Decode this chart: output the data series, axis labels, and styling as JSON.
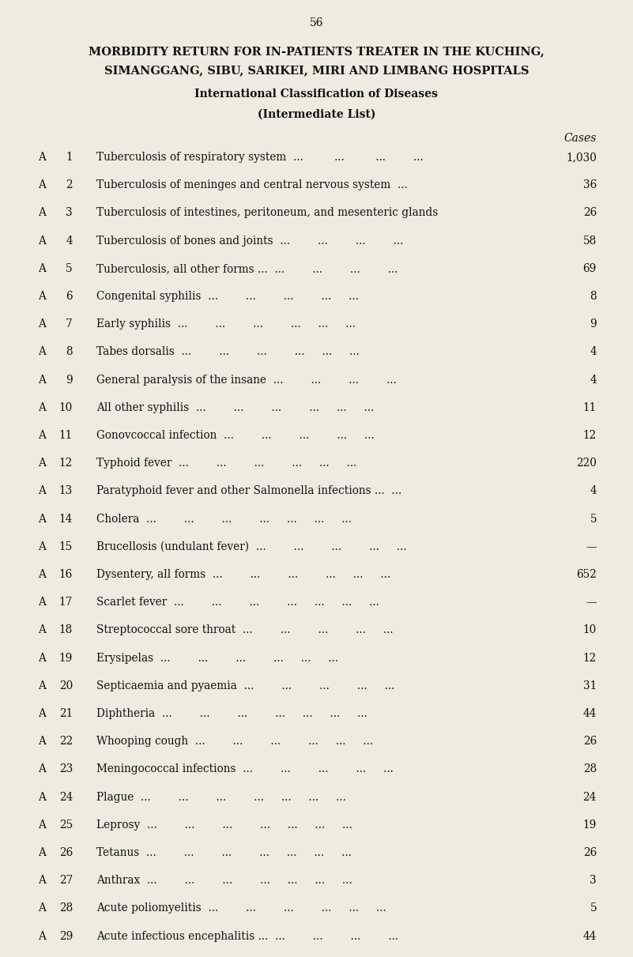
{
  "page_number": "56",
  "title_line1": "MORBIDITY RETURN FOR IN-PATIENTS TREATER IN THE KUCHING,",
  "title_line2": "SIMANGGANG, SIBU, SARIKEI, MIRI AND LIMBANG HOSPITALS",
  "subtitle1": "International Classification of Diseases",
  "subtitle2": "(Intermediate List)",
  "col_header": "Cases",
  "background_color": "#f0ebe0",
  "text_color": "#111111",
  "rows": [
    {
      "letter": "A",
      "num": "1",
      "description": "Tuberculosis of respiratory system",
      "dots": "...         ...         ...        ...",
      "value": "1,030"
    },
    {
      "letter": "A",
      "num": "2",
      "description": "Tuberculosis of meninges and central nervous system",
      "dots": "...",
      "value": "36"
    },
    {
      "letter": "A",
      "num": "3",
      "description": "Tuberculosis of intestines, peritoneum, and mesenteric glands",
      "dots": "",
      "value": "26"
    },
    {
      "letter": "A",
      "num": "4",
      "description": "Tuberculosis of bones and joints",
      "dots": "...        ...        ...        ...",
      "value": "58"
    },
    {
      "letter": "A",
      "num": "5",
      "description": "Tuberculosis, all other forms ...",
      "dots": "...        ...        ...        ...",
      "value": "69"
    },
    {
      "letter": "A",
      "num": "6",
      "description": "Congenital syphilis",
      "dots": "...        ...        ...        ...     ...",
      "value": "8"
    },
    {
      "letter": "A",
      "num": "7",
      "description": "Early syphilis",
      "dots": "...        ...        ...        ...     ...     ...",
      "value": "9"
    },
    {
      "letter": "A",
      "num": "8",
      "description": "Tabes dorsalis",
      "dots": "...        ...        ...        ...     ...     ...",
      "value": "4"
    },
    {
      "letter": "A",
      "num": "9",
      "description": "General paralysis of the insane",
      "dots": "...        ...        ...        ...",
      "value": "4"
    },
    {
      "letter": "A",
      "num": "10",
      "description": "All other syphilis",
      "dots": "...        ...        ...        ...     ...     ...",
      "value": "11"
    },
    {
      "letter": "A",
      "num": "11",
      "description": "Gonovcoccal infection",
      "dots": "...        ...        ...        ...     ...",
      "value": "12"
    },
    {
      "letter": "A",
      "num": "12",
      "description": "Typhoid fever",
      "dots": "...        ...        ...        ...     ...     ...",
      "value": "220"
    },
    {
      "letter": "A",
      "num": "13",
      "description": "Paratyphoid fever and other Salmonella infections ...",
      "dots": "...",
      "value": "4"
    },
    {
      "letter": "A",
      "num": "14",
      "description": "Cholera",
      "dots": "...        ...        ...        ...     ...     ...     ...",
      "value": "5"
    },
    {
      "letter": "A",
      "num": "15",
      "description": "Brucellosis (undulant fever)",
      "dots": "...        ...        ...        ...     ...",
      "value": "—"
    },
    {
      "letter": "A",
      "num": "16",
      "description": "Dysentery, all forms",
      "dots": "...        ...        ...        ...     ...     ...",
      "value": "652"
    },
    {
      "letter": "A",
      "num": "17",
      "description": "Scarlet fever",
      "dots": "...        ...        ...        ...     ...     ...     ...",
      "value": "—"
    },
    {
      "letter": "A",
      "num": "18",
      "description": "Streptococcal sore throat",
      "dots": "...        ...        ...        ...     ...",
      "value": "10"
    },
    {
      "letter": "A",
      "num": "19",
      "description": "Erysipelas",
      "dots": "...        ...        ...        ...     ...     ...",
      "value": "12"
    },
    {
      "letter": "A",
      "num": "20",
      "description": "Septicaemia and pyaemia",
      "dots": "...        ...        ...        ...     ...",
      "value": "31"
    },
    {
      "letter": "A",
      "num": "21",
      "description": "Diphtheria",
      "dots": "...        ...        ...        ...     ...     ...     ...",
      "value": "44"
    },
    {
      "letter": "A",
      "num": "22",
      "description": "Whooping cough",
      "dots": "...        ...        ...        ...     ...     ...",
      "value": "26"
    },
    {
      "letter": "A",
      "num": "23",
      "description": "Meningococcal infections",
      "dots": "...        ...        ...        ...     ...",
      "value": "28"
    },
    {
      "letter": "A",
      "num": "24",
      "description": "Plague",
      "dots": "...        ...        ...        ...     ...     ...     ...",
      "value": "24"
    },
    {
      "letter": "A",
      "num": "25",
      "description": "Leprosy",
      "dots": "...        ...        ...        ...     ...     ...     ...",
      "value": "19"
    },
    {
      "letter": "A",
      "num": "26",
      "description": "Tetanus",
      "dots": "...        ...        ...        ...     ...     ...     ...",
      "value": "26"
    },
    {
      "letter": "A",
      "num": "27",
      "description": "Anthrax",
      "dots": "...        ...        ...        ...     ...     ...     ...",
      "value": "3"
    },
    {
      "letter": "A",
      "num": "28",
      "description": "Acute poliomyelitis",
      "dots": "...        ...        ...        ...     ...     ...",
      "value": "5"
    },
    {
      "letter": "A",
      "num": "29",
      "description": "Acute infectious encephalitis ...",
      "dots": "...        ...        ...        ...",
      "value": "44"
    }
  ]
}
